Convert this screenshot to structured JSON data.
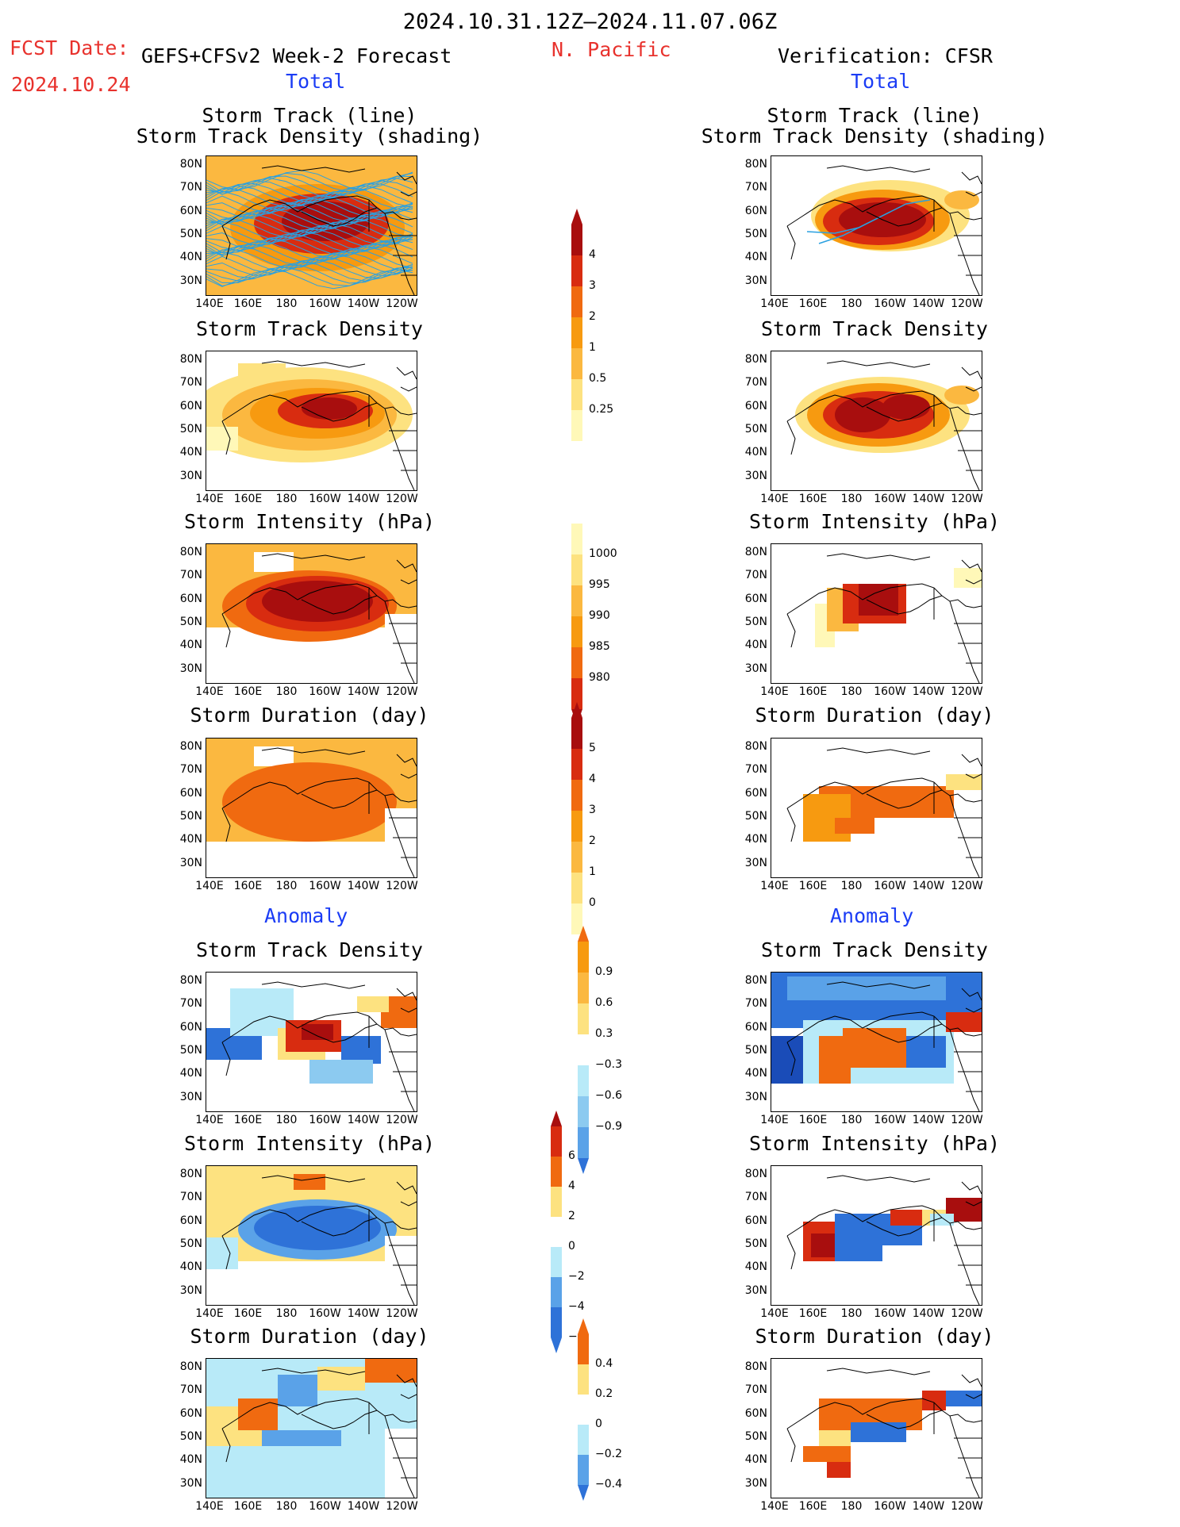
{
  "header": {
    "period": "2024.10.31.12Z–2024.11.07.06Z",
    "region": "N. Pacific",
    "fcst_label": "FCST Date:",
    "model": "GEFS+CFSv2 Week-2 Forecast",
    "fcst_date": "2024.10.24",
    "verification": "Verification: CFSR",
    "total_left": "Total",
    "total_right": "Total",
    "anomaly_left": "Anomaly",
    "anomaly_right": "Anomaly"
  },
  "panel_titles": {
    "track_line": "Storm Track (line)",
    "track_shading": "Storm Track Density (shading)",
    "density": "Storm Track Density",
    "intensity": "Storm Intensity (hPa)",
    "duration": "Storm Duration (day)"
  },
  "axes": {
    "lat_ticks": [
      "80N",
      "70N",
      "60N",
      "50N",
      "40N",
      "30N"
    ],
    "lon_ticks": [
      "140E",
      "160E",
      "180",
      "160W",
      "140W",
      "120W"
    ]
  },
  "colorbars": {
    "density_total": [
      "4",
      "3",
      "2",
      "1",
      "0.5",
      "0.25"
    ],
    "intensity_total": [
      "1000",
      "995",
      "990",
      "985",
      "980"
    ],
    "duration_total": [
      "5",
      "4",
      "3",
      "2",
      "1",
      "0"
    ],
    "density_anom": [
      "0.9",
      "0.6",
      "0.3",
      "−0.3",
      "−0.6",
      "−0.9"
    ],
    "intensity_anom": [
      "6",
      "4",
      "2",
      "0",
      "−2",
      "−4",
      "−6"
    ],
    "duration_anom": [
      "0.4",
      "0.2",
      "0",
      "−0.2",
      "−0.4"
    ]
  },
  "colors": {
    "warm": [
      "#fff8b8",
      "#fde280",
      "#fbb840",
      "#f79a10",
      "#f06a10",
      "#d82c10",
      "#a80e0e"
    ],
    "cool": [
      "#b8eaf8",
      "#8ccaf0",
      "#5aa2e8",
      "#2e72d8",
      "#1a4cb8"
    ],
    "track_blue": "#2aa0e0",
    "title_red": "#e8322d",
    "title_blue": "#1b3cf5"
  }
}
